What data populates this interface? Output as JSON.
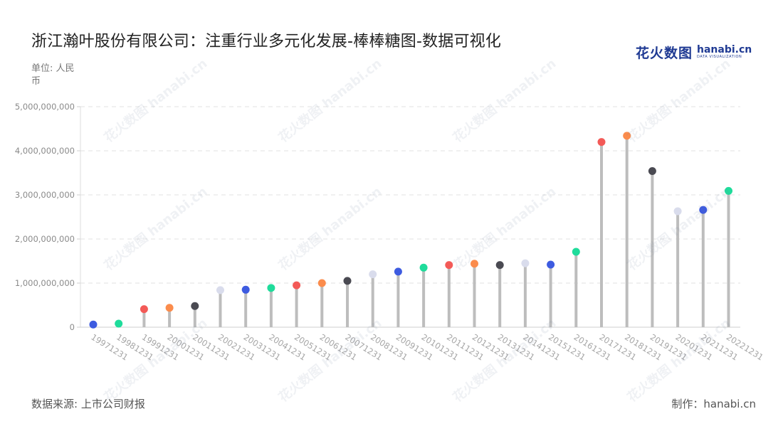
{
  "title": "浙江瀚叶股份有限公司：注重行业多元化发展-棒棒糖图-数据可视化",
  "unit_label": "单位: 人民币",
  "logo": {
    "main": "花火数图",
    "en": "hanabi.cn",
    "tagline": "DATA VISUALIZATION"
  },
  "source": "数据来源: 上市公司财报",
  "credit": "制作：hanabi.cn",
  "watermark": "花火数图 hanabi.cn",
  "colors": {
    "stem": "#bdbdbd",
    "grid": "#e2e2e2",
    "palette": [
      "#3d5be0",
      "#1fdc9b",
      "#f35a57",
      "#fb8c4c",
      "#4a4a52",
      "#d9dcec"
    ]
  },
  "chart_data": {
    "type": "lollipop",
    "x_tick_labels_rotated": true,
    "categories": [
      "19971231",
      "19981231",
      "19991231",
      "20001231",
      "20011231",
      "20021231",
      "20031231",
      "20041231",
      "20051231",
      "20061231",
      "20071231",
      "20081231",
      "20091231",
      "20101231",
      "20111231",
      "20121231",
      "20131231",
      "20141231",
      "20151231",
      "20161231",
      "20171231",
      "20181231",
      "20191231",
      "20201231",
      "20211231",
      "20221231"
    ],
    "values": [
      60000000,
      80000000,
      410000000,
      440000000,
      480000000,
      840000000,
      850000000,
      890000000,
      950000000,
      1000000000,
      1050000000,
      1200000000,
      1260000000,
      1350000000,
      1410000000,
      1440000000,
      1410000000,
      1450000000,
      1420000000,
      1710000000,
      4200000000,
      4340000000,
      3540000000,
      2630000000,
      2660000000,
      3090000000
    ],
    "ylim": [
      0,
      5000000000
    ],
    "yticks": [
      0,
      1000000000,
      2000000000,
      3000000000,
      4000000000,
      5000000000
    ],
    "ytick_labels": [
      "0",
      "1,000,000,000",
      "2,000,000,000",
      "3,000,000,000",
      "4,000,000,000",
      "5,000,000,000"
    ],
    "grid": true,
    "legend": "none"
  }
}
